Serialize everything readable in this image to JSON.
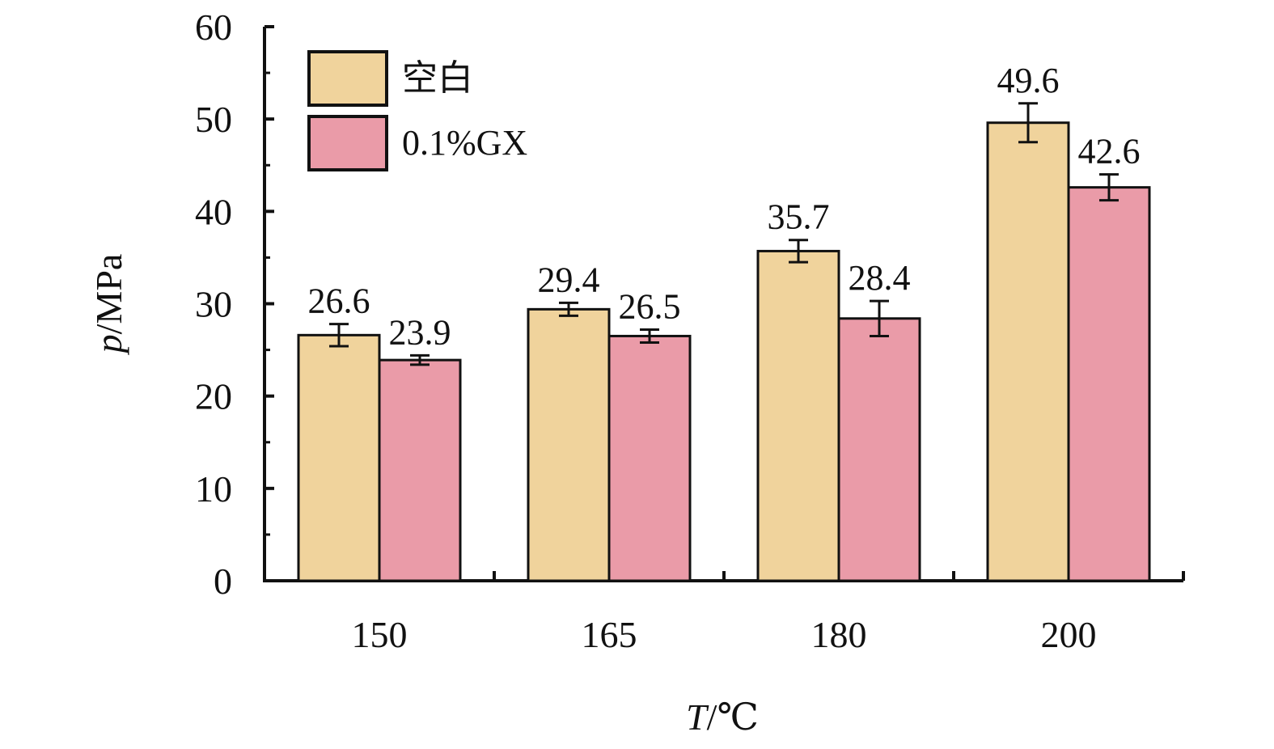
{
  "chart_data": {
    "type": "bar",
    "categories": [
      "150",
      "165",
      "180",
      "200"
    ],
    "series": [
      {
        "name": "空白",
        "color": "#f0d39c",
        "values": [
          26.6,
          29.4,
          35.7,
          49.6
        ],
        "labels": [
          "26.6",
          "29.4",
          "35.7",
          "49.6"
        ],
        "errors": [
          1.2,
          0.7,
          1.2,
          2.1
        ]
      },
      {
        "name": "0.1%GX",
        "color": "#ea9ba8",
        "values": [
          23.9,
          26.5,
          28.4,
          42.6
        ],
        "labels": [
          "23.9",
          "26.5",
          "28.4",
          "42.6"
        ],
        "errors": [
          0.5,
          0.7,
          1.9,
          1.4
        ]
      }
    ],
    "xlabel": {
      "var": "T",
      "unit": "/℃"
    },
    "ylabel": {
      "var": "p",
      "unit": "/MPa"
    },
    "ylim": [
      0,
      60
    ],
    "yticks": [
      "0",
      "10",
      "20",
      "30",
      "40",
      "50",
      "60"
    ],
    "legend": "top-left",
    "grid": false
  }
}
